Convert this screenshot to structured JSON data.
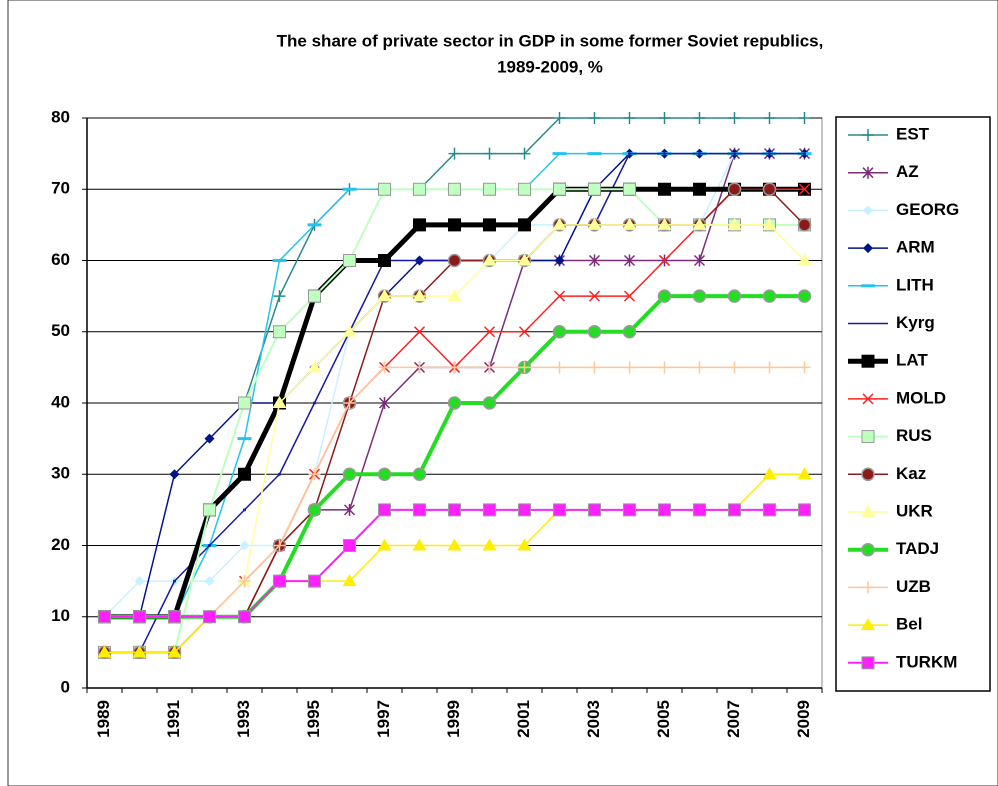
{
  "chart_data": {
    "type": "line",
    "title": [
      "The share of private sector in GDP in some former Soviet republics,",
      "1989-2009, %"
    ],
    "categories": [
      "1989",
      null,
      "1991",
      null,
      "1993",
      null,
      "1995",
      null,
      "1997",
      null,
      "1999",
      null,
      "2001",
      null,
      "2003",
      null,
      "2005",
      null,
      "2007",
      null,
      "2009"
    ],
    "ylim": [
      0,
      80
    ],
    "yticks": [
      0,
      10,
      20,
      30,
      40,
      50,
      60,
      70,
      80
    ],
    "grid": true,
    "legend": "right",
    "series": [
      {
        "name": "EST",
        "color": "#2a8a8a",
        "marker": "plus",
        "line_width": 1.5,
        "values": [
          10,
          10,
          10,
          25,
          40,
          55,
          65,
          70,
          70,
          70,
          75,
          75,
          75,
          80,
          80,
          80,
          80,
          80,
          80,
          80,
          80
        ]
      },
      {
        "name": "AZ",
        "color": "#7b2d7b",
        "marker": "star",
        "line_width": 1.5,
        "values": [
          10,
          10,
          10,
          10,
          10,
          20,
          25,
          25,
          40,
          45,
          45,
          45,
          60,
          60,
          60,
          60,
          60,
          60,
          75,
          75,
          75
        ]
      },
      {
        "name": "GEORG",
        "color": "#c8f2ff",
        "marker": "diamond",
        "line_width": 1.5,
        "values": [
          10,
          15,
          15,
          15,
          20,
          20,
          30,
          50,
          60,
          60,
          60,
          60,
          65,
          65,
          65,
          65,
          65,
          65,
          75,
          75,
          75
        ]
      },
      {
        "name": "ARM",
        "color": "#00148a",
        "marker": "diamond",
        "line_width": 1.5,
        "values": [
          10,
          10,
          30,
          35,
          40,
          40,
          45,
          50,
          55,
          60,
          60,
          60,
          60,
          60,
          70,
          75,
          75,
          75,
          75,
          75,
          75
        ]
      },
      {
        "name": "LITH",
        "color": "#22c4ee",
        "marker": "dash",
        "line_width": 1.5,
        "values": [
          10,
          10,
          10,
          20,
          35,
          60,
          65,
          70,
          70,
          70,
          70,
          70,
          70,
          75,
          75,
          75,
          75,
          75,
          75,
          75,
          75
        ]
      },
      {
        "name": "Kyrg",
        "color": "#1a1aa0",
        "marker": "none",
        "line_width": 1.5,
        "values": [
          5,
          5,
          15,
          20,
          25,
          30,
          40,
          50,
          60,
          60,
          60,
          60,
          60,
          65,
          65,
          75,
          75,
          75,
          75,
          75,
          75
        ]
      },
      {
        "name": "LAT",
        "color": "#000000",
        "marker": "square",
        "line_width": 5,
        "values": [
          10,
          10,
          10,
          25,
          30,
          40,
          55,
          60,
          60,
          65,
          65,
          65,
          65,
          70,
          70,
          70,
          70,
          70,
          70,
          70,
          70
        ]
      },
      {
        "name": "MOLD",
        "color": "#ff2020",
        "marker": "x",
        "line_width": 1.5,
        "values": [
          10,
          10,
          10,
          10,
          15,
          20,
          30,
          40,
          45,
          50,
          45,
          50,
          50,
          55,
          55,
          55,
          60,
          65,
          70,
          70,
          70
        ]
      },
      {
        "name": "RUS",
        "color": "#bfffbf",
        "marker": "square",
        "line_width": 2,
        "values": [
          5,
          5,
          5,
          25,
          40,
          50,
          55,
          60,
          70,
          70,
          70,
          70,
          70,
          70,
          70,
          70,
          65,
          65,
          65,
          65,
          65
        ]
      },
      {
        "name": "Kaz",
        "color": "#8b1a1a",
        "marker": "circle",
        "line_width": 1.5,
        "values": [
          5,
          5,
          5,
          10,
          10,
          20,
          25,
          40,
          55,
          55,
          60,
          60,
          60,
          65,
          65,
          65,
          65,
          65,
          70,
          70,
          65
        ]
      },
      {
        "name": "UKR",
        "color": "#ffff9a",
        "marker": "triangle",
        "line_width": 1.5,
        "values": [
          10,
          10,
          10,
          10,
          15,
          40,
          45,
          50,
          55,
          55,
          55,
          60,
          60,
          65,
          65,
          65,
          65,
          65,
          65,
          65,
          60
        ]
      },
      {
        "name": "TADJ",
        "color": "#22dd22",
        "marker": "circle",
        "line_width": 4,
        "values": [
          10,
          10,
          10,
          10,
          10,
          15,
          25,
          30,
          30,
          30,
          40,
          40,
          45,
          50,
          50,
          50,
          55,
          55,
          55,
          55,
          55
        ]
      },
      {
        "name": "UZB",
        "color": "#ffc89a",
        "marker": "plus",
        "line_width": 1.5,
        "values": [
          10,
          10,
          10,
          10,
          15,
          20,
          30,
          40,
          45,
          45,
          45,
          45,
          45,
          45,
          45,
          45,
          45,
          45,
          45,
          45,
          45
        ]
      },
      {
        "name": "Bel",
        "color": "#ffee00",
        "marker": "triangle",
        "line_width": 1.5,
        "values": [
          5,
          5,
          5,
          10,
          10,
          15,
          15,
          15,
          20,
          20,
          20,
          20,
          20,
          25,
          25,
          25,
          25,
          25,
          25,
          30,
          30
        ]
      },
      {
        "name": "TURKM",
        "color": "#ff20ff",
        "marker": "square",
        "line_width": 2,
        "values": [
          10,
          10,
          10,
          10,
          10,
          15,
          15,
          20,
          25,
          25,
          25,
          25,
          25,
          25,
          25,
          25,
          25,
          25,
          25,
          25,
          25
        ]
      }
    ]
  }
}
